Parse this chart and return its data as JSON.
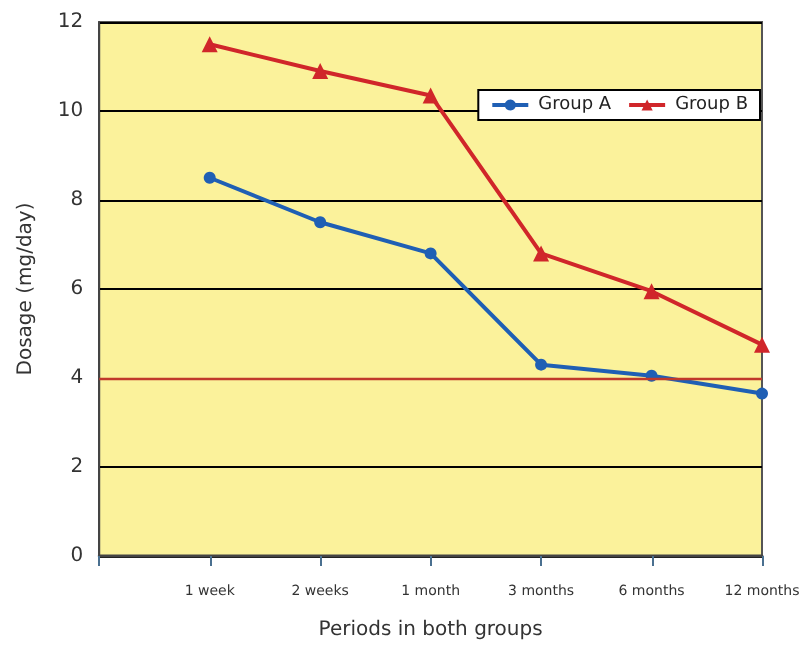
{
  "chart_data": {
    "type": "line",
    "xlabel": "Periods in both groups",
    "ylabel": "Dosage (mg/day)",
    "categories": [
      "1 week",
      "2 weeks",
      "1 month",
      "3 months",
      "6 months",
      "12 months"
    ],
    "series": [
      {
        "name": "Group A",
        "color": "#1f5fb4",
        "marker": "circle",
        "values": [
          8.5,
          7.5,
          6.8,
          4.3,
          4.05,
          3.65
        ]
      },
      {
        "name": "Group B",
        "color": "#d0262a",
        "marker": "triangle",
        "values": [
          11.5,
          10.9,
          10.35,
          6.8,
          5.95,
          4.75
        ]
      }
    ],
    "ylim": [
      0,
      12
    ],
    "yticks": [
      0,
      2,
      4,
      6,
      8,
      10,
      12
    ],
    "grid": "y",
    "legend": "top right",
    "ref_lines": [
      {
        "axis": "y",
        "value": 4,
        "color": "#c0392b"
      }
    ]
  }
}
